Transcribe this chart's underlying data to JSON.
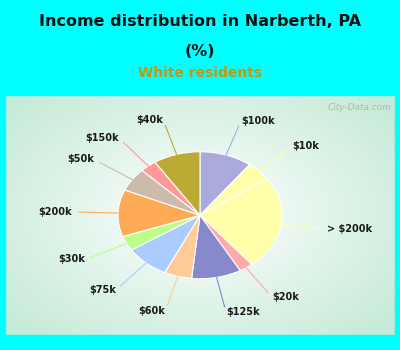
{
  "title_line1": "Income distribution in Narberth, PA",
  "title_line2": "(%)",
  "subtitle": "White residents",
  "title_color": "#111111",
  "subtitle_color": "#c8960a",
  "bg_cyan": "#00ffff",
  "watermark": "City-Data.com",
  "labels": [
    "$100k",
    "$10k",
    "> $200k",
    "$20k",
    "$125k",
    "$60k",
    "$75k",
    "$30k",
    "$200k",
    "$50k",
    "$150k",
    "$40k"
  ],
  "sizes": [
    9.5,
    4.5,
    22.0,
    2.5,
    9.0,
    5.0,
    8.0,
    3.5,
    11.0,
    5.5,
    3.0,
    8.5
  ],
  "colors": [
    "#aaaadd",
    "#ffffaa",
    "#ffffaa",
    "#ffaaaa",
    "#8888cc",
    "#ffcc99",
    "#aaccff",
    "#bbff88",
    "#ffaa55",
    "#ccbbaa",
    "#ff9999",
    "#bbaa33"
  ],
  "startangle": 90
}
